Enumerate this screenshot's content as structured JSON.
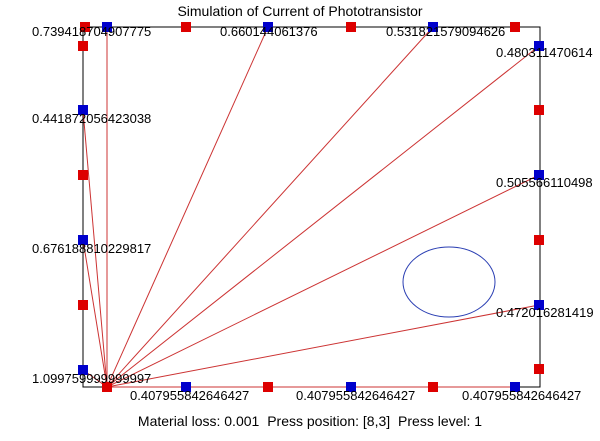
{
  "window": {
    "title": "Simulation of Current of Phototransistor"
  },
  "colors": {
    "emitter": "#dd0000",
    "receiver": "#0000cc",
    "beam": "#cc3333",
    "press_circle": "#2b3fb3",
    "frame": "#000000"
  },
  "readings": {
    "top": [
      "0.739418704907775",
      "0.660144061376",
      "0.531821579094626"
    ],
    "right": [
      "0.480311470614",
      "0.505566110498",
      "0.472016281419"
    ],
    "left": [
      "0.441872056423038",
      "0.676188810229817",
      "1.099759999999997"
    ],
    "bottom": [
      "0.407955842646427",
      "0.407955842646427",
      "0.407955842646427"
    ]
  },
  "status": {
    "material_loss": "Material loss: 0.001",
    "press_position": "Press position: [8,3]",
    "press_level": "Press level: 1"
  }
}
